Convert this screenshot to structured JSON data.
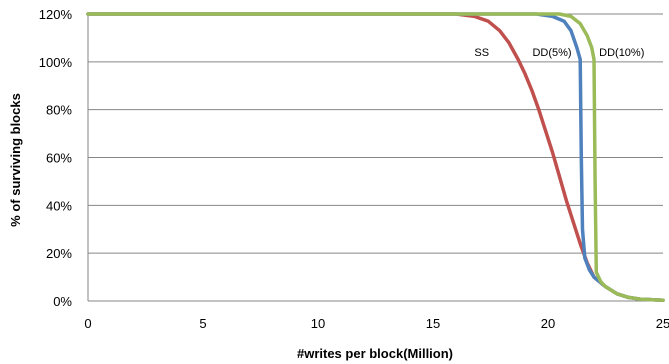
{
  "chart_data": {
    "type": "line",
    "title": "",
    "xlabel": "#writes per block(Million)",
    "ylabel": "% of surviving blocks",
    "xlim": [
      0,
      25
    ],
    "ylim": [
      0,
      120
    ],
    "x_ticks": [
      "0",
      "5",
      "10",
      "15",
      "20",
      "25"
    ],
    "x_tick_values": [
      0,
      5,
      10,
      15,
      20,
      25
    ],
    "y_ticks": [
      "0%",
      "20%",
      "40%",
      "60%",
      "80%",
      "100%",
      "120%"
    ],
    "y_tick_values": [
      0,
      20,
      40,
      60,
      80,
      100,
      120
    ],
    "grid": "horizontal",
    "legend": "none",
    "series": [
      {
        "name": "SS",
        "color": "#c0504d",
        "x": [
          0,
          15.0,
          16.0,
          16.8,
          17.4,
          17.9,
          18.3,
          18.7,
          19.0,
          19.3,
          19.6,
          19.9,
          20.2,
          20.5,
          20.8,
          21.1,
          21.4,
          21.7,
          22.0,
          22.5,
          23.0,
          23.5,
          24.0,
          25.0
        ],
        "values": [
          120,
          120,
          120,
          119,
          117,
          113,
          108,
          101,
          95,
          88,
          80,
          71,
          62,
          52,
          42,
          33,
          24,
          16,
          10,
          6,
          3,
          1.5,
          0.8,
          0.3
        ]
      },
      {
        "name": "DD(5%)",
        "color": "#4f81bd",
        "x": [
          0,
          18.5,
          19.5,
          20.2,
          20.7,
          21.0,
          21.25,
          21.4,
          21.45,
          21.5,
          21.6,
          21.8,
          22.0,
          22.5,
          23.0,
          23.5,
          24.0,
          25.0
        ],
        "values": [
          120,
          120,
          120,
          119,
          117,
          113,
          106,
          101,
          60,
          30,
          18,
          13,
          10,
          6,
          3,
          1.5,
          0.8,
          0.3
        ]
      },
      {
        "name": "DD(10%)",
        "color": "#9bbb59",
        "x": [
          0,
          19.5,
          20.5,
          21.0,
          21.4,
          21.7,
          21.9,
          22.0,
          22.05,
          22.1,
          22.3,
          22.5,
          23.0,
          23.5,
          24.0,
          25.0
        ],
        "values": [
          120,
          120,
          120,
          119,
          116,
          111,
          106,
          101,
          50,
          12,
          8,
          6,
          3,
          1.5,
          0.8,
          0.3
        ]
      }
    ]
  }
}
